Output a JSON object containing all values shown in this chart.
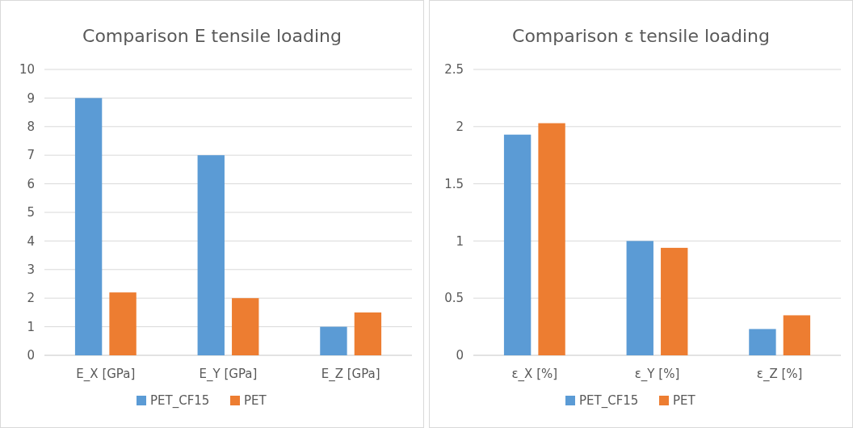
{
  "chart_data": [
    {
      "type": "bar",
      "title": "Comparison E tensile loading",
      "categories": [
        "E_X [GPa]",
        "E_Y [GPa]",
        "E_Z [GPa]"
      ],
      "series": [
        {
          "name": "PET_CF15",
          "color": "#5b9bd5",
          "values": [
            9,
            7,
            1
          ]
        },
        {
          "name": "PET",
          "color": "#ed7d31",
          "values": [
            2.2,
            2.0,
            1.5
          ]
        }
      ],
      "ylim": [
        0,
        10
      ],
      "yticks": [
        0,
        1,
        2,
        3,
        4,
        5,
        6,
        7,
        8,
        9,
        10
      ],
      "grid": "y",
      "legend": "bottom"
    },
    {
      "type": "bar",
      "title": "Comparison ε tensile loading",
      "categories": [
        "ε_X [%]",
        "ε_Y [%]",
        "ε_Z [%]"
      ],
      "series": [
        {
          "name": "PET_CF15",
          "color": "#5b9bd5",
          "values": [
            1.93,
            1.0,
            0.23
          ]
        },
        {
          "name": "PET",
          "color": "#ed7d31",
          "values": [
            2.03,
            0.94,
            0.35
          ]
        }
      ],
      "ylim": [
        0,
        2.5
      ],
      "yticks": [
        0,
        0.5,
        1,
        1.5,
        2,
        2.5
      ],
      "grid": "y",
      "legend": "bottom"
    }
  ]
}
